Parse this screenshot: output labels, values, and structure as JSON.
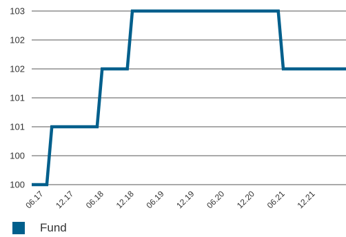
{
  "chart_data": {
    "type": "line",
    "line_style": "step",
    "title": "",
    "xlabel": "",
    "ylabel": "",
    "y_tick_labels": [
      "100",
      "100",
      "101",
      "101",
      "102",
      "102",
      "103"
    ],
    "x_tick_labels": [
      "06.17",
      "12.17",
      "06.18",
      "12.18",
      "06.19",
      "12.19",
      "06.20",
      "12.20",
      "06.21",
      "12.21"
    ],
    "grid": "horizontal",
    "legend_position": "bottom-left",
    "series": [
      {
        "name": "Fund",
        "color": "#005f8c",
        "x": [
          "2017-05",
          "2017-06",
          "2017-07",
          "2017-08",
          "2017-09",
          "2017-10",
          "2017-11",
          "2017-12",
          "2018-01",
          "2018-02",
          "2018-03",
          "2018-04",
          "2018-05",
          "2018-06",
          "2018-07",
          "2018-08",
          "2018-09",
          "2018-10",
          "2018-11",
          "2018-12",
          "2019-01",
          "2019-02",
          "2019-03",
          "2019-04",
          "2019-05",
          "2019-06",
          "2019-07",
          "2019-08",
          "2019-09",
          "2019-10",
          "2019-11",
          "2019-12",
          "2020-01",
          "2020-02",
          "2020-03",
          "2020-04",
          "2020-05",
          "2020-06",
          "2020-07",
          "2020-08",
          "2020-09",
          "2020-10",
          "2020-11",
          "2020-12",
          "2021-01",
          "2021-02",
          "2021-03",
          "2021-04",
          "2021-05",
          "2021-06",
          "2021-07",
          "2021-08",
          "2021-09",
          "2021-10",
          "2021-11",
          "2021-12",
          "2022-01",
          "2022-02"
        ],
        "y": [
          100.0,
          100.0,
          100.0,
          100.0,
          101.0,
          101.0,
          101.0,
          101.0,
          101.0,
          101.0,
          101.0,
          101.0,
          101.0,
          101.0,
          102.0,
          102.0,
          102.0,
          102.0,
          102.0,
          102.0,
          103.0,
          103.0,
          103.0,
          103.0,
          103.0,
          103.0,
          103.0,
          103.0,
          103.0,
          103.0,
          103.0,
          103.0,
          103.0,
          103.0,
          103.0,
          103.0,
          103.0,
          103.0,
          103.0,
          103.0,
          103.0,
          103.0,
          103.0,
          103.0,
          103.0,
          103.0,
          103.0,
          103.0,
          103.0,
          103.0,
          102.0,
          102.0,
          102.0,
          102.0,
          102.0,
          102.0,
          102.0,
          102.0
        ]
      }
    ]
  }
}
